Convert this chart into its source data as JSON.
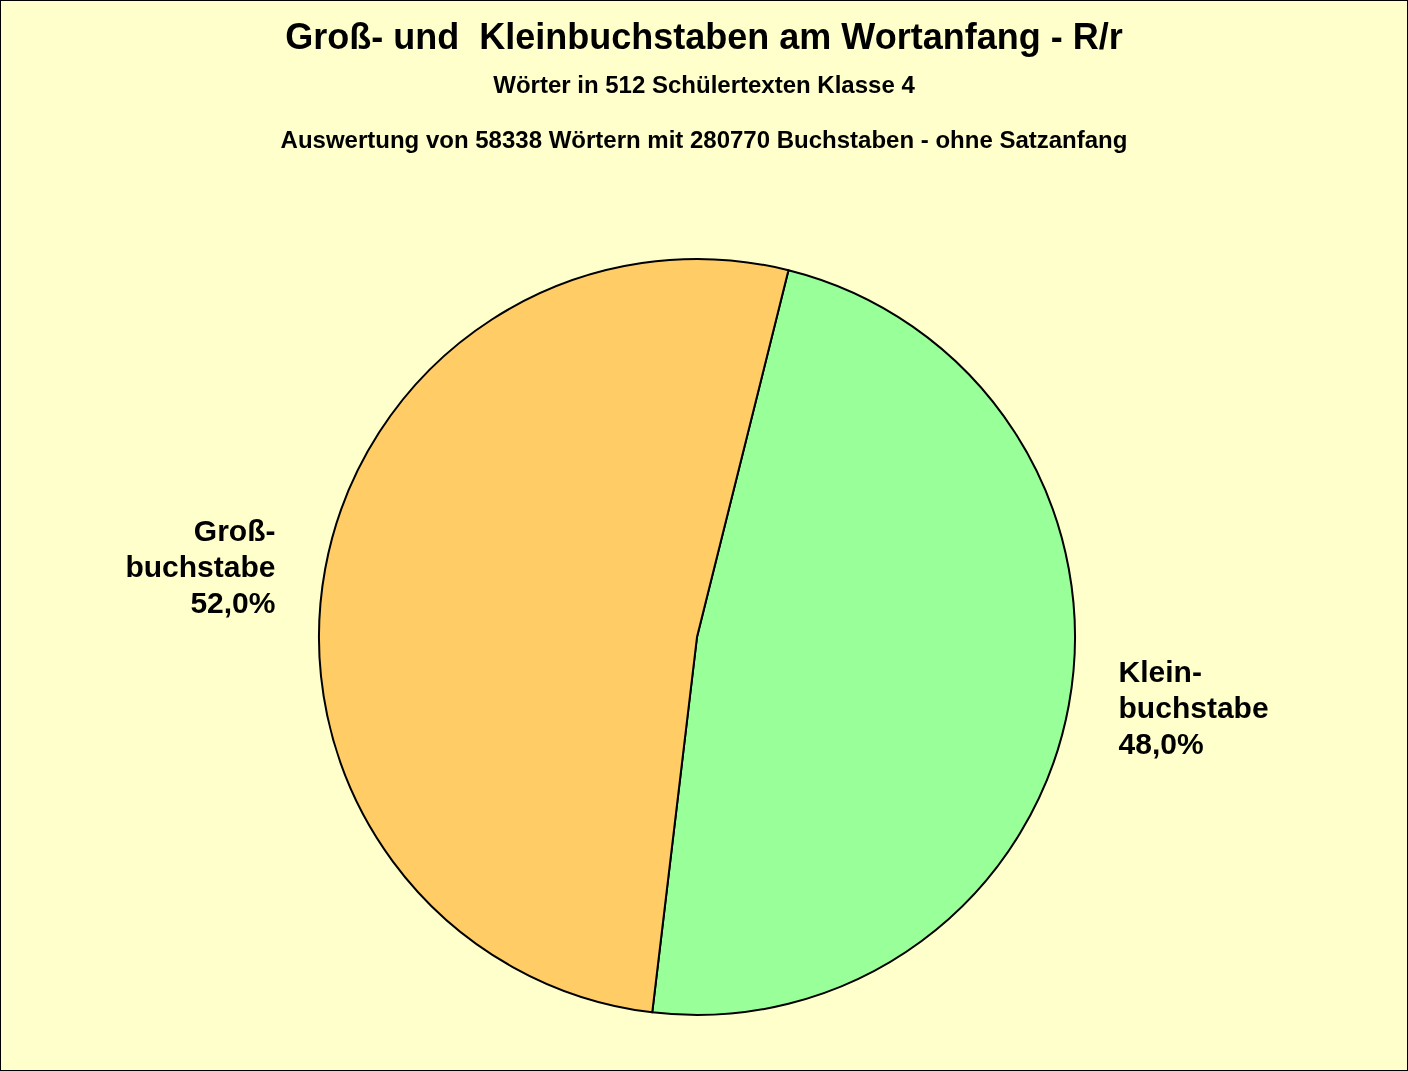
{
  "chart_data": {
    "type": "pie",
    "title": "Groß- und  Kleinbuchstaben am Wortanfang - R/r",
    "subtitle": "Wörter in 512 Schülertexten Klasse 4",
    "annotations": [
      "Auswertung von 58338 Wörtern mit 280770 Buchstaben - ohne Satzanfang"
    ],
    "categories": [
      "Klein-\nbuchstabe",
      "Groß-\nbuchstabe"
    ],
    "values": [
      48,
      52
    ],
    "value_labels": [
      "48,0%",
      "52,0%"
    ],
    "colors": [
      "#99ff99",
      "#ffcc66"
    ],
    "legend": false
  }
}
